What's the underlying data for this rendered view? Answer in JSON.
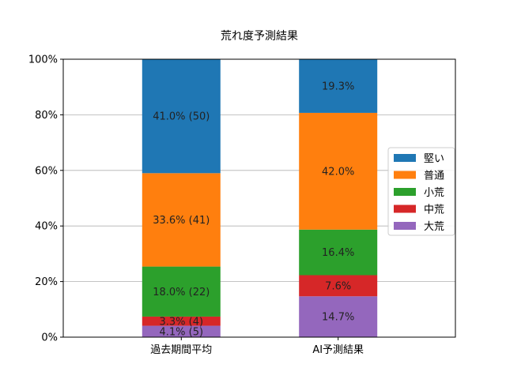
{
  "chart_data": {
    "type": "bar",
    "stacked": true,
    "title": "荒れ度予測結果",
    "xlabel": "",
    "ylabel": "",
    "categories": [
      "過去期間平均",
      "AI予測結果"
    ],
    "ylim": [
      0,
      100
    ],
    "yticks": [
      "0%",
      "20%",
      "40%",
      "60%",
      "80%",
      "100%"
    ],
    "grid": "y",
    "legend_position": "center-right",
    "series": [
      {
        "name": "大荒",
        "color": "#9467bd",
        "values": [
          4.1,
          14.7
        ],
        "labels": [
          "4.1% (5)",
          "14.7%"
        ]
      },
      {
        "name": "中荒",
        "color": "#d62728",
        "values": [
          3.3,
          7.6
        ],
        "labels": [
          "3.3% (4)",
          "7.6%"
        ]
      },
      {
        "name": "小荒",
        "color": "#2ca02c",
        "values": [
          18.0,
          16.4
        ],
        "labels": [
          "18.0% (22)",
          "16.4%"
        ]
      },
      {
        "name": "普通",
        "color": "#ff7f0e",
        "values": [
          33.6,
          42.0
        ],
        "labels": [
          "33.6% (41)",
          "42.0%"
        ]
      },
      {
        "name": "堅い",
        "color": "#1f77b4",
        "values": [
          41.0,
          19.3
        ],
        "labels": [
          "41.0% (50)",
          "19.3%"
        ]
      }
    ],
    "legend_order": [
      "堅い",
      "普通",
      "小荒",
      "中荒",
      "大荒"
    ]
  }
}
